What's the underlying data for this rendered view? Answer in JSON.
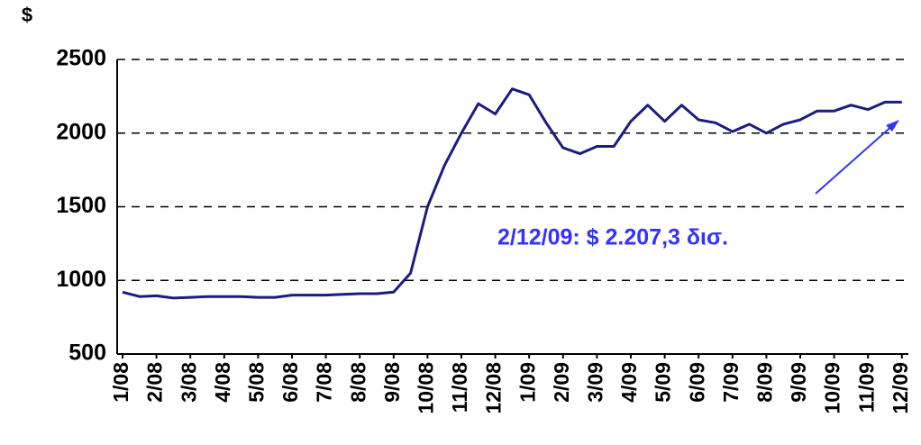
{
  "chart_data": {
    "type": "line",
    "y_label": "$",
    "annotation": "2/12/09: $ 2.207,3 δισ.",
    "categories": [
      "1/08",
      null,
      "2/08",
      null,
      "3/08",
      null,
      "4/08",
      null,
      "5/08",
      null,
      "6/08",
      null,
      "7/08",
      null,
      "8/08",
      null,
      "9/08",
      null,
      "10/08",
      null,
      "11/08",
      null,
      "12/08",
      null,
      "1/09",
      null,
      "2/09",
      null,
      "3/09",
      null,
      "4/09",
      null,
      "5/09",
      null,
      "6/09",
      null,
      "7/09",
      null,
      "8/09",
      null,
      "9/09",
      null,
      "10/09",
      null,
      "11/09",
      null,
      "12/09"
    ],
    "values": [
      920,
      890,
      895,
      880,
      885,
      890,
      890,
      890,
      885,
      885,
      900,
      900,
      900,
      905,
      910,
      910,
      920,
      1050,
      1500,
      1780,
      2000,
      2200,
      2130,
      2300,
      2260,
      2070,
      1900,
      1860,
      1910,
      1910,
      2080,
      2190,
      2080,
      2190,
      2090,
      2070,
      2010,
      2060,
      2000,
      2060,
      2090,
      2150,
      2150,
      2190,
      2160,
      2210,
      2210
    ],
    "color": "#1c1c80",
    "annotation_color": "#3333ff",
    "ylim": [
      500,
      2500
    ],
    "yticks": [
      500,
      1000,
      1500,
      2000,
      2500
    ],
    "grid": true
  }
}
